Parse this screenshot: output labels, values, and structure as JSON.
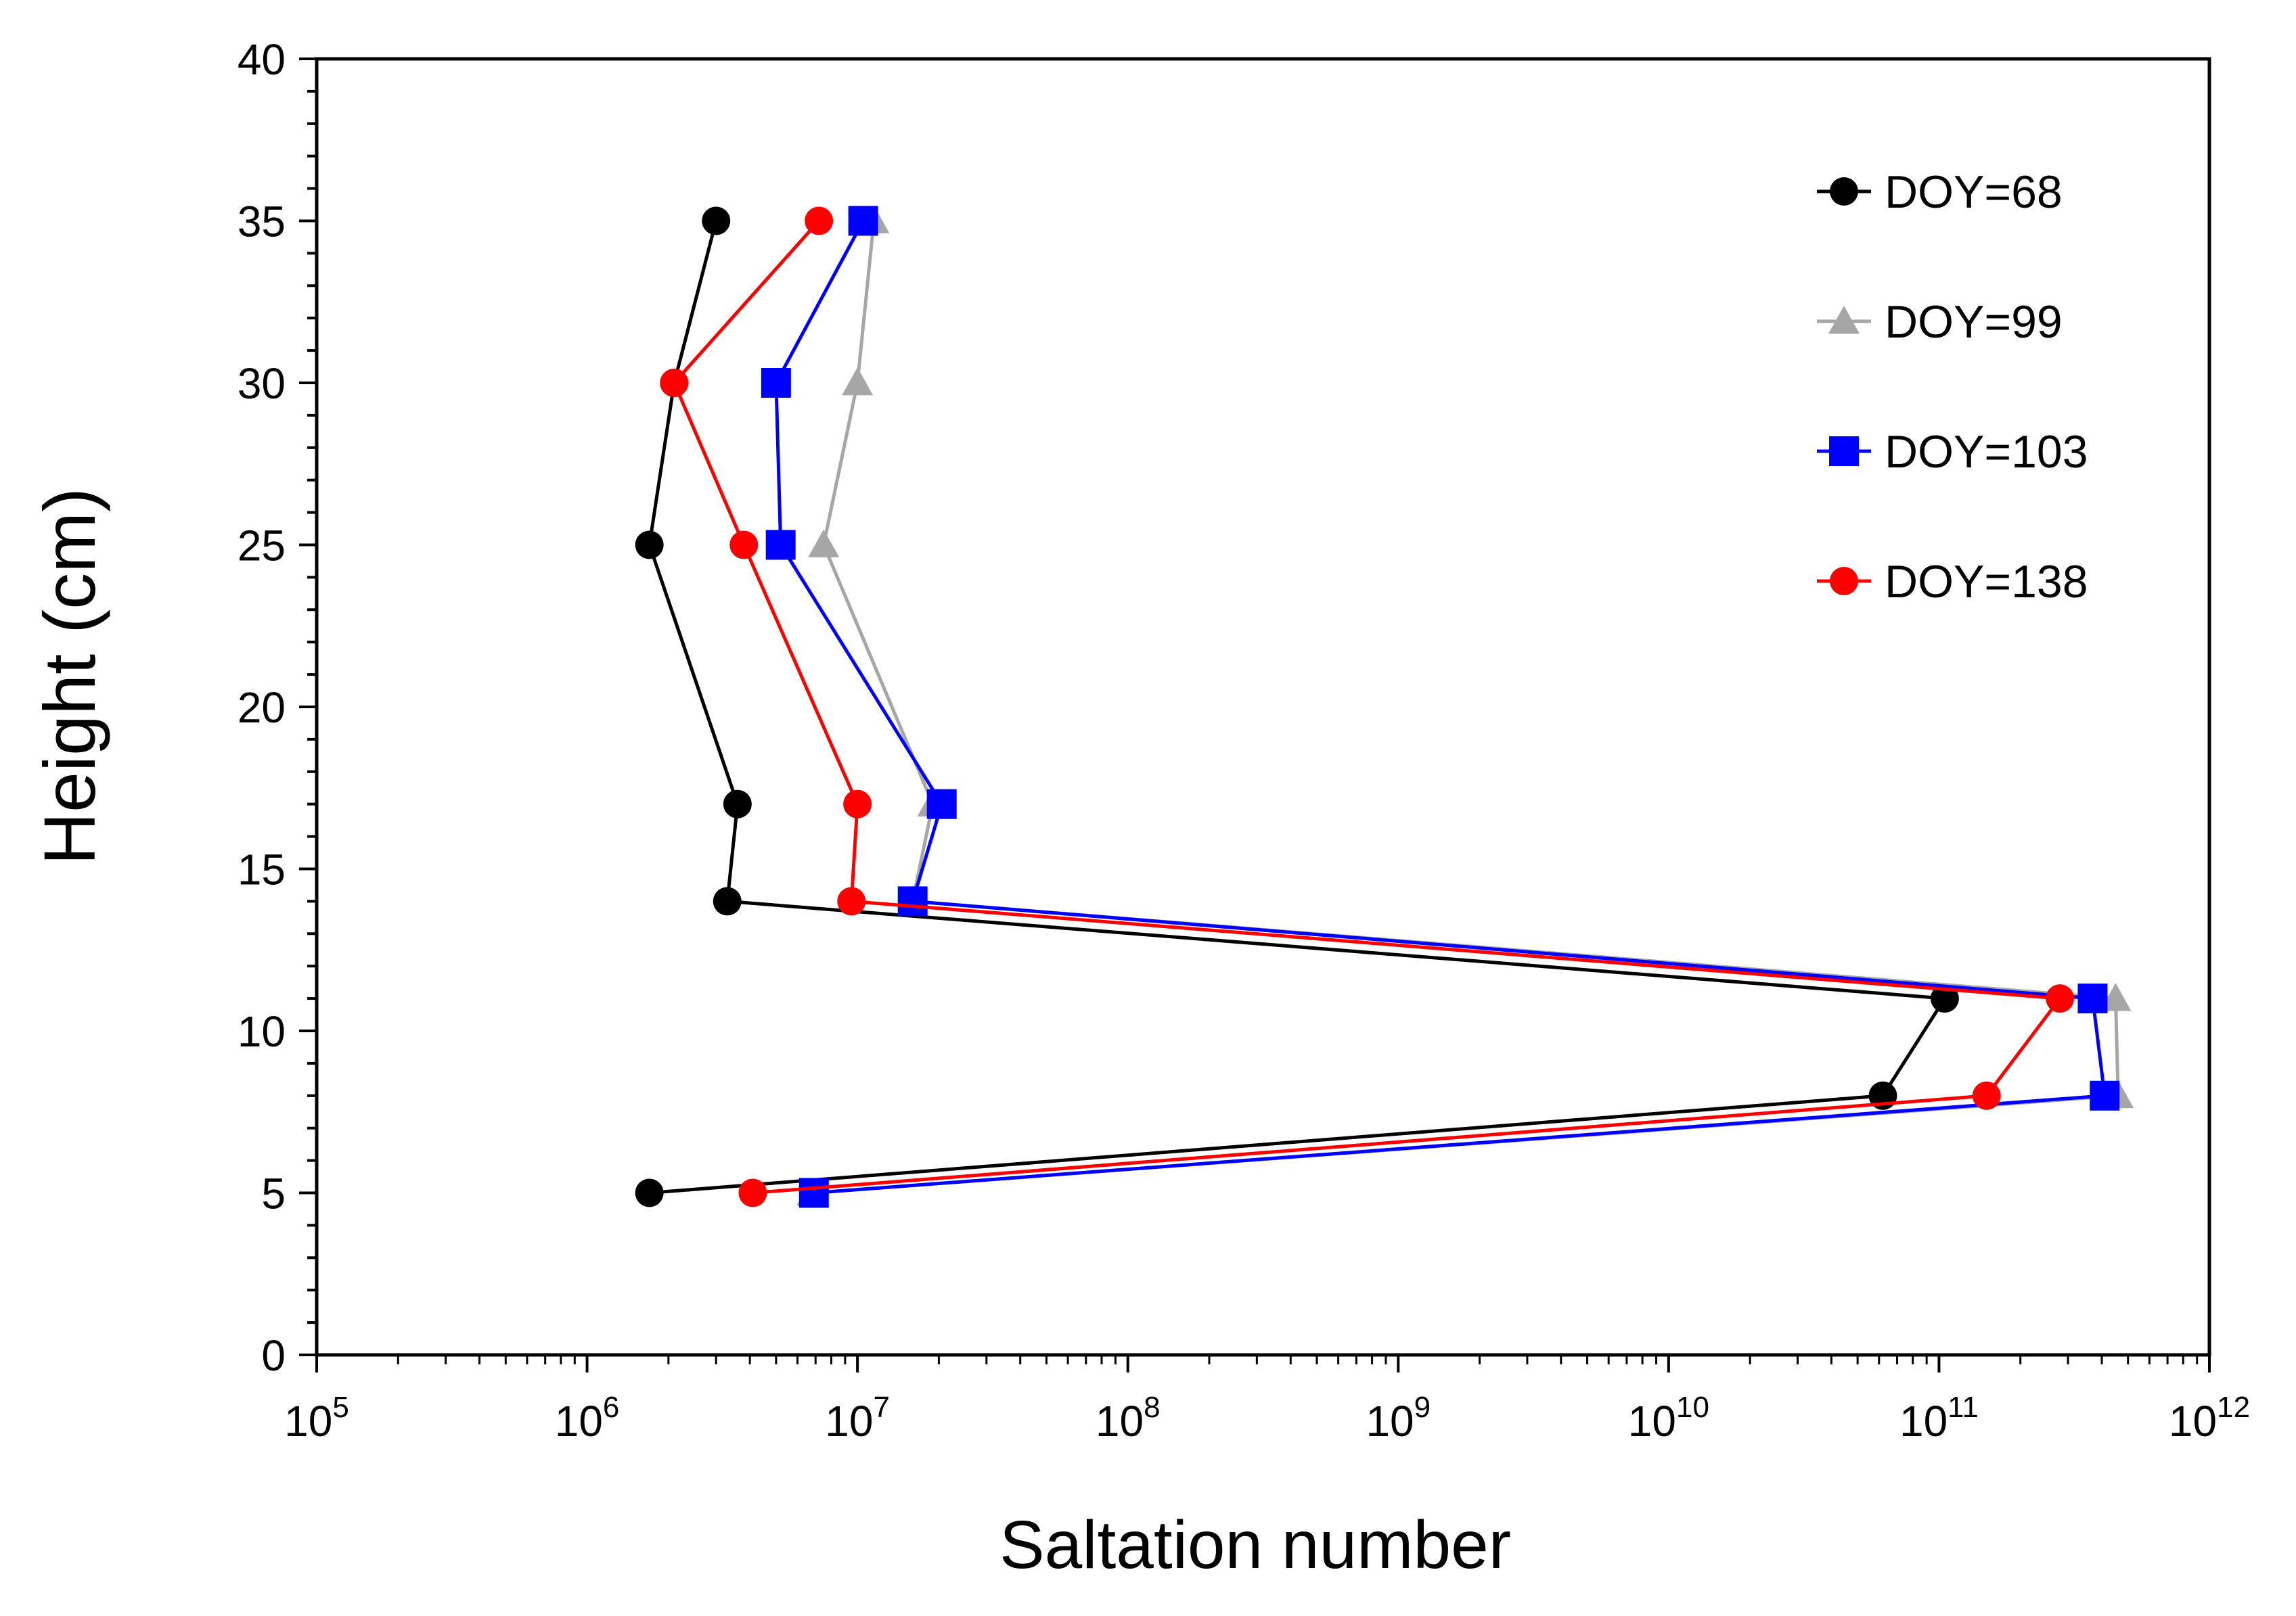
{
  "chart_data": {
    "type": "line",
    "title": "",
    "xlabel": "Saltation number",
    "ylabel": "Height (cm)",
    "x_scale": "log",
    "xlim": [
      100000,
      1000000000000
    ],
    "ylim": [
      0,
      40
    ],
    "x_ticks": [
      {
        "value": 100000,
        "base": "10",
        "exp": "5"
      },
      {
        "value": 1000000,
        "base": "10",
        "exp": "6"
      },
      {
        "value": 10000000,
        "base": "10",
        "exp": "7"
      },
      {
        "value": 100000000,
        "base": "10",
        "exp": "8"
      },
      {
        "value": 1000000000,
        "base": "10",
        "exp": "9"
      },
      {
        "value": 10000000000,
        "base": "10",
        "exp": "10"
      },
      {
        "value": 100000000000,
        "base": "10",
        "exp": "11"
      },
      {
        "value": 1000000000000,
        "base": "10",
        "exp": "12"
      }
    ],
    "y_ticks": [
      {
        "value": 0,
        "label": "0"
      },
      {
        "value": 5,
        "label": "5"
      },
      {
        "value": 10,
        "label": "10"
      },
      {
        "value": 15,
        "label": "15"
      },
      {
        "value": 20,
        "label": "20"
      },
      {
        "value": 25,
        "label": "25"
      },
      {
        "value": 30,
        "label": "30"
      },
      {
        "value": 35,
        "label": "35"
      },
      {
        "value": 40,
        "label": "40"
      }
    ],
    "grid": false,
    "legend_position": "top-right",
    "series": [
      {
        "name": "DOY=68",
        "color": "#000000",
        "marker": "circle",
        "points": [
          [
            1700000,
            5
          ],
          [
            62000000000,
            8
          ],
          [
            105000000000,
            11
          ],
          [
            3300000,
            14
          ],
          [
            3600000,
            17
          ],
          [
            1700000,
            25
          ],
          [
            2100000,
            30
          ],
          [
            3000000,
            35
          ]
        ]
      },
      {
        "name": "DOY=99",
        "color": "#a6a6a6",
        "marker": "triangle",
        "points": [
          [
            6800000,
            5
          ],
          [
            460000000000,
            8
          ],
          [
            450000000000,
            11
          ],
          [
            16000000,
            14
          ],
          [
            19000000,
            17
          ],
          [
            7500000,
            25
          ],
          [
            10000000,
            30
          ],
          [
            11500000,
            35
          ]
        ]
      },
      {
        "name": "DOY=103",
        "color": "#0000ff",
        "marker": "square",
        "points": [
          [
            6900000,
            5
          ],
          [
            410000000000,
            8
          ],
          [
            370000000000,
            11
          ],
          [
            16000000,
            14
          ],
          [
            20500000,
            17
          ],
          [
            5200000,
            25
          ],
          [
            5000000,
            30
          ],
          [
            10500000,
            35
          ]
        ]
      },
      {
        "name": "DOY=138",
        "color": "#ff0000",
        "marker": "circle",
        "points": [
          [
            4100000,
            5
          ],
          [
            150000000000,
            8
          ],
          [
            280000000000,
            11
          ],
          [
            9500000,
            14
          ],
          [
            10000000,
            17
          ],
          [
            3800000,
            25
          ],
          [
            2100000,
            30
          ],
          [
            7200000,
            35
          ]
        ]
      }
    ]
  }
}
